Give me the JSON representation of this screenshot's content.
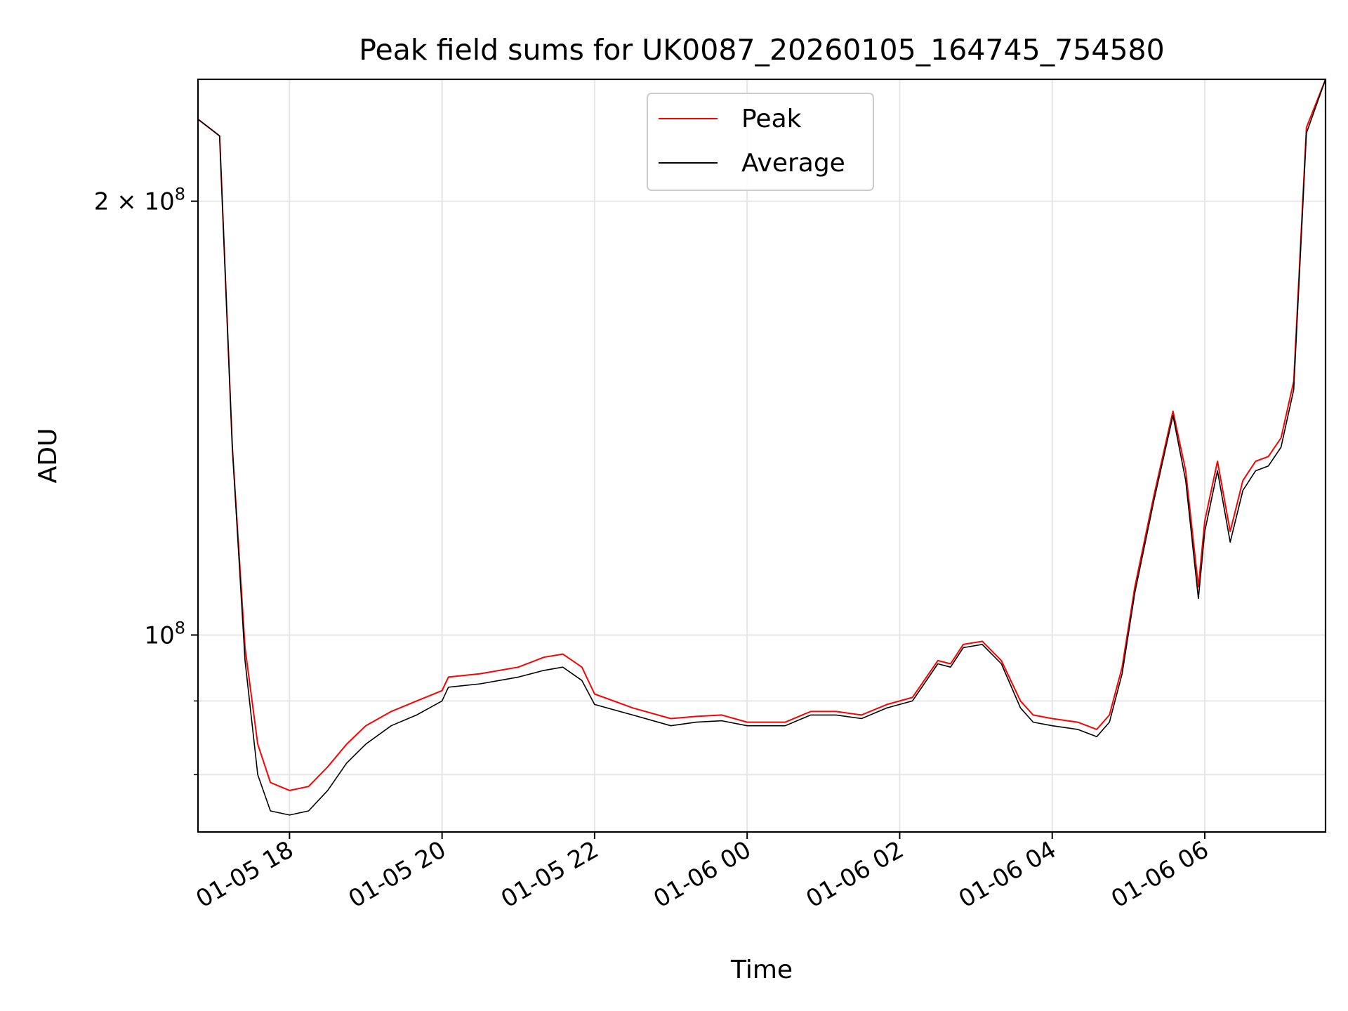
{
  "chart_data": {
    "type": "line",
    "title": "Peak field sums for UK0087_20260105_164745_754580",
    "xlabel": "Time",
    "ylabel": "ADU",
    "x_tick_labels": [
      "01-05 18",
      "01-05 20",
      "01-05 22",
      "01-06 00",
      "01-06 02",
      "01-06 04",
      "01-06 06"
    ],
    "x_ticks": [
      "2026-01-05 18:00",
      "2026-01-05 20:00",
      "2026-01-05 22:00",
      "2026-01-06 00:00",
      "2026-01-06 02:00",
      "2026-01-06 04:00",
      "2026-01-06 06:00"
    ],
    "xlim": [
      "2026-01-05 16:48",
      "2026-01-06 07:35"
    ],
    "y_scale": "log",
    "ylim": [
      73000000,
      243000000
    ],
    "y_major_ticks": [
      100000000,
      200000000
    ],
    "y_tick_labels": [
      {
        "base": "10",
        "exp": "8"
      },
      {
        "base": "2 × 10",
        "exp": "8"
      }
    ],
    "y_minor_ticks": [
      80000000,
      90000000
    ],
    "grid": true,
    "legend_position": "upper center",
    "series": [
      {
        "name": "Peak",
        "color": "#ff0000",
        "x": [
          "2026-01-05 16:48",
          "2026-01-05 17:05",
          "2026-01-05 17:15",
          "2026-01-05 17:25",
          "2026-01-05 17:35",
          "2026-01-05 17:45",
          "2026-01-05 18:00",
          "2026-01-05 18:15",
          "2026-01-05 18:30",
          "2026-01-05 18:45",
          "2026-01-05 19:00",
          "2026-01-05 19:20",
          "2026-01-05 19:40",
          "2026-01-05 20:00",
          "2026-01-05 20:05",
          "2026-01-05 20:30",
          "2026-01-05 21:00",
          "2026-01-05 21:20",
          "2026-01-05 21:35",
          "2026-01-05 21:50",
          "2026-01-05 22:00",
          "2026-01-05 22:30",
          "2026-01-05 23:00",
          "2026-01-05 23:20",
          "2026-01-05 23:40",
          "2026-01-06 00:00",
          "2026-01-06 00:30",
          "2026-01-06 00:50",
          "2026-01-06 01:10",
          "2026-01-06 01:30",
          "2026-01-06 01:50",
          "2026-01-06 02:10",
          "2026-01-06 02:30",
          "2026-01-06 02:40",
          "2026-01-06 02:50",
          "2026-01-06 03:05",
          "2026-01-06 03:20",
          "2026-01-06 03:35",
          "2026-01-06 03:45",
          "2026-01-06 04:00",
          "2026-01-06 04:20",
          "2026-01-06 04:35",
          "2026-01-06 04:45",
          "2026-01-06 04:55",
          "2026-01-06 05:05",
          "2026-01-06 05:20",
          "2026-01-06 05:35",
          "2026-01-06 05:45",
          "2026-01-06 05:55",
          "2026-01-06 06:00",
          "2026-01-06 06:10",
          "2026-01-06 06:20",
          "2026-01-06 06:30",
          "2026-01-06 06:40",
          "2026-01-06 06:50",
          "2026-01-06 07:00",
          "2026-01-06 07:10",
          "2026-01-06 07:20",
          "2026-01-06 07:35"
        ],
        "y": [
          228000000,
          222000000,
          135000000,
          98000000,
          84000000,
          79000000,
          78000000,
          78500000,
          81000000,
          84000000,
          86500000,
          88500000,
          90000000,
          91500000,
          93500000,
          94000000,
          95000000,
          96500000,
          97000000,
          95000000,
          91000000,
          89000000,
          87500000,
          87800000,
          88000000,
          87000000,
          87000000,
          88500000,
          88500000,
          88000000,
          89500000,
          90500000,
          96000000,
          95500000,
          98500000,
          99000000,
          96000000,
          90000000,
          88000000,
          87500000,
          87000000,
          86000000,
          88000000,
          95000000,
          108000000,
          125000000,
          143000000,
          130000000,
          108000000,
          120000000,
          132000000,
          118000000,
          128000000,
          132000000,
          133000000,
          137000000,
          150000000,
          225000000,
          243000000
        ]
      },
      {
        "name": "Average",
        "color": "#000000",
        "x": [
          "2026-01-05 16:48",
          "2026-01-05 17:05",
          "2026-01-05 17:15",
          "2026-01-05 17:25",
          "2026-01-05 17:35",
          "2026-01-05 17:45",
          "2026-01-05 18:00",
          "2026-01-05 18:15",
          "2026-01-05 18:30",
          "2026-01-05 18:45",
          "2026-01-05 19:00",
          "2026-01-05 19:20",
          "2026-01-05 19:40",
          "2026-01-05 20:00",
          "2026-01-05 20:05",
          "2026-01-05 20:30",
          "2026-01-05 21:00",
          "2026-01-05 21:20",
          "2026-01-05 21:35",
          "2026-01-05 21:50",
          "2026-01-05 22:00",
          "2026-01-05 22:30",
          "2026-01-05 23:00",
          "2026-01-05 23:20",
          "2026-01-05 23:40",
          "2026-01-06 00:00",
          "2026-01-06 00:30",
          "2026-01-06 00:50",
          "2026-01-06 01:10",
          "2026-01-06 01:30",
          "2026-01-06 01:50",
          "2026-01-06 02:10",
          "2026-01-06 02:30",
          "2026-01-06 02:40",
          "2026-01-06 02:50",
          "2026-01-06 03:05",
          "2026-01-06 03:20",
          "2026-01-06 03:35",
          "2026-01-06 03:45",
          "2026-01-06 04:00",
          "2026-01-06 04:20",
          "2026-01-06 04:35",
          "2026-01-06 04:45",
          "2026-01-06 04:55",
          "2026-01-06 05:05",
          "2026-01-06 05:20",
          "2026-01-06 05:35",
          "2026-01-06 05:45",
          "2026-01-06 05:55",
          "2026-01-06 06:00",
          "2026-01-06 06:10",
          "2026-01-06 06:20",
          "2026-01-06 06:30",
          "2026-01-06 06:40",
          "2026-01-06 06:50",
          "2026-01-06 07:00",
          "2026-01-06 07:10",
          "2026-01-06 07:20",
          "2026-01-06 07:35"
        ],
        "y": [
          228000000,
          222000000,
          135000000,
          96000000,
          80000000,
          75500000,
          75000000,
          75500000,
          78000000,
          81500000,
          84000000,
          86500000,
          88000000,
          90000000,
          92000000,
          92500000,
          93500000,
          94500000,
          95000000,
          93000000,
          89500000,
          88000000,
          86500000,
          87000000,
          87200000,
          86500000,
          86500000,
          88000000,
          88000000,
          87500000,
          89000000,
          90000000,
          95500000,
          95000000,
          98000000,
          98500000,
          95500000,
          89000000,
          87000000,
          86500000,
          86000000,
          85000000,
          87000000,
          94000000,
          107000000,
          124000000,
          142000000,
          128000000,
          106000000,
          118000000,
          130000000,
          116000000,
          126000000,
          130000000,
          131000000,
          135000000,
          148000000,
          223000000,
          243000000
        ]
      }
    ],
    "legend": [
      {
        "label": "Peak",
        "color": "#ff0000"
      },
      {
        "label": "Average",
        "color": "#000000"
      }
    ]
  }
}
